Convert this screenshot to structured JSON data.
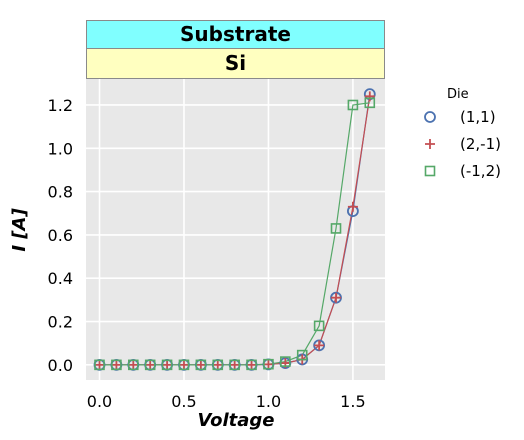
{
  "strips": {
    "top": "Substrate",
    "bottom": "Si"
  },
  "chart_data": {
    "type": "scatter",
    "xlabel": "Voltage",
    "ylabel": "I [A]",
    "xlim": [
      -0.08,
      1.69
    ],
    "ylim": [
      -0.07,
      1.32
    ],
    "xticks": [
      0.0,
      0.5,
      1.0,
      1.5
    ],
    "xtick_labels": [
      "0.0",
      "0.5",
      "1.0",
      "1.5"
    ],
    "yticks": [
      0.0,
      0.2,
      0.4,
      0.6,
      0.8,
      1.0,
      1.2
    ],
    "ytick_labels": [
      "0.0",
      "0.2",
      "0.4",
      "0.6",
      "0.8",
      "1.0",
      "1.2"
    ],
    "grid": true,
    "legend_title": "Die",
    "legend_position": "right",
    "x": [
      0.0,
      0.1,
      0.2,
      0.3,
      0.4,
      0.5,
      0.6,
      0.7,
      0.8,
      0.9,
      1.0,
      1.1,
      1.2,
      1.3,
      1.4,
      1.5,
      1.6
    ],
    "series": [
      {
        "name": "(1,1)",
        "marker": "circle",
        "color": "#4c72b0",
        "values": [
          0,
          0,
          0,
          0,
          0,
          0,
          0,
          0,
          0,
          0,
          0.002,
          0.008,
          0.025,
          0.09,
          0.31,
          0.71,
          1.25
        ]
      },
      {
        "name": "(2,-1)",
        "marker": "plus",
        "color": "#c44e52",
        "values": [
          0,
          0,
          0,
          0,
          0,
          0,
          0,
          0,
          0,
          0,
          0.002,
          0.008,
          0.025,
          0.09,
          0.31,
          0.73,
          1.24
        ]
      },
      {
        "name": "(-1,2)",
        "marker": "square",
        "color": "#55a868",
        "values": [
          0,
          0,
          0,
          0,
          0,
          0,
          0,
          0,
          0,
          0,
          0.003,
          0.015,
          0.045,
          0.18,
          0.63,
          1.2,
          1.21
        ]
      }
    ]
  }
}
